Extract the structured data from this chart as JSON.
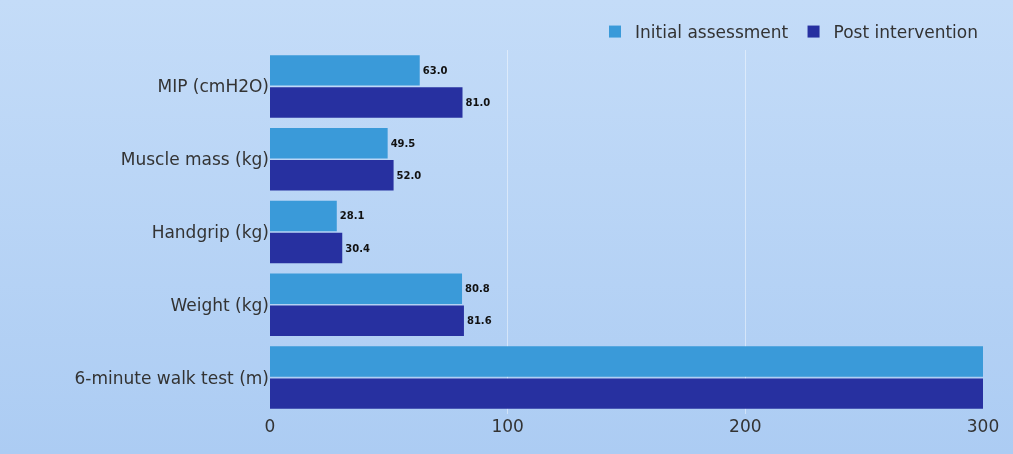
{
  "chart_data": {
    "type": "bar",
    "orientation": "horizontal",
    "categories": [
      "MIP (cmH2O)",
      "Muscle mass (kg)",
      "Handgrip (kg)",
      "Weight (kg)",
      "6-minute walk test (m)"
    ],
    "series": [
      {
        "name": "Initial assessment",
        "color": "#3a9ad9",
        "values": [
          63.0,
          49.5,
          28.1,
          80.8,
          300
        ],
        "value_labels": [
          "63.0",
          "49.5",
          "28.1",
          "80.8",
          null
        ]
      },
      {
        "name": "Post intervention",
        "color": "#2730a0",
        "values": [
          81.0,
          52.0,
          30.4,
          81.6,
          300
        ],
        "value_labels": [
          "81.0",
          "52.0",
          "30.4",
          "81.6",
          null
        ]
      }
    ],
    "xlim": [
      0,
      300
    ],
    "xticks": [
      0,
      100,
      200,
      300
    ],
    "grid": "x",
    "legend": "top right"
  }
}
